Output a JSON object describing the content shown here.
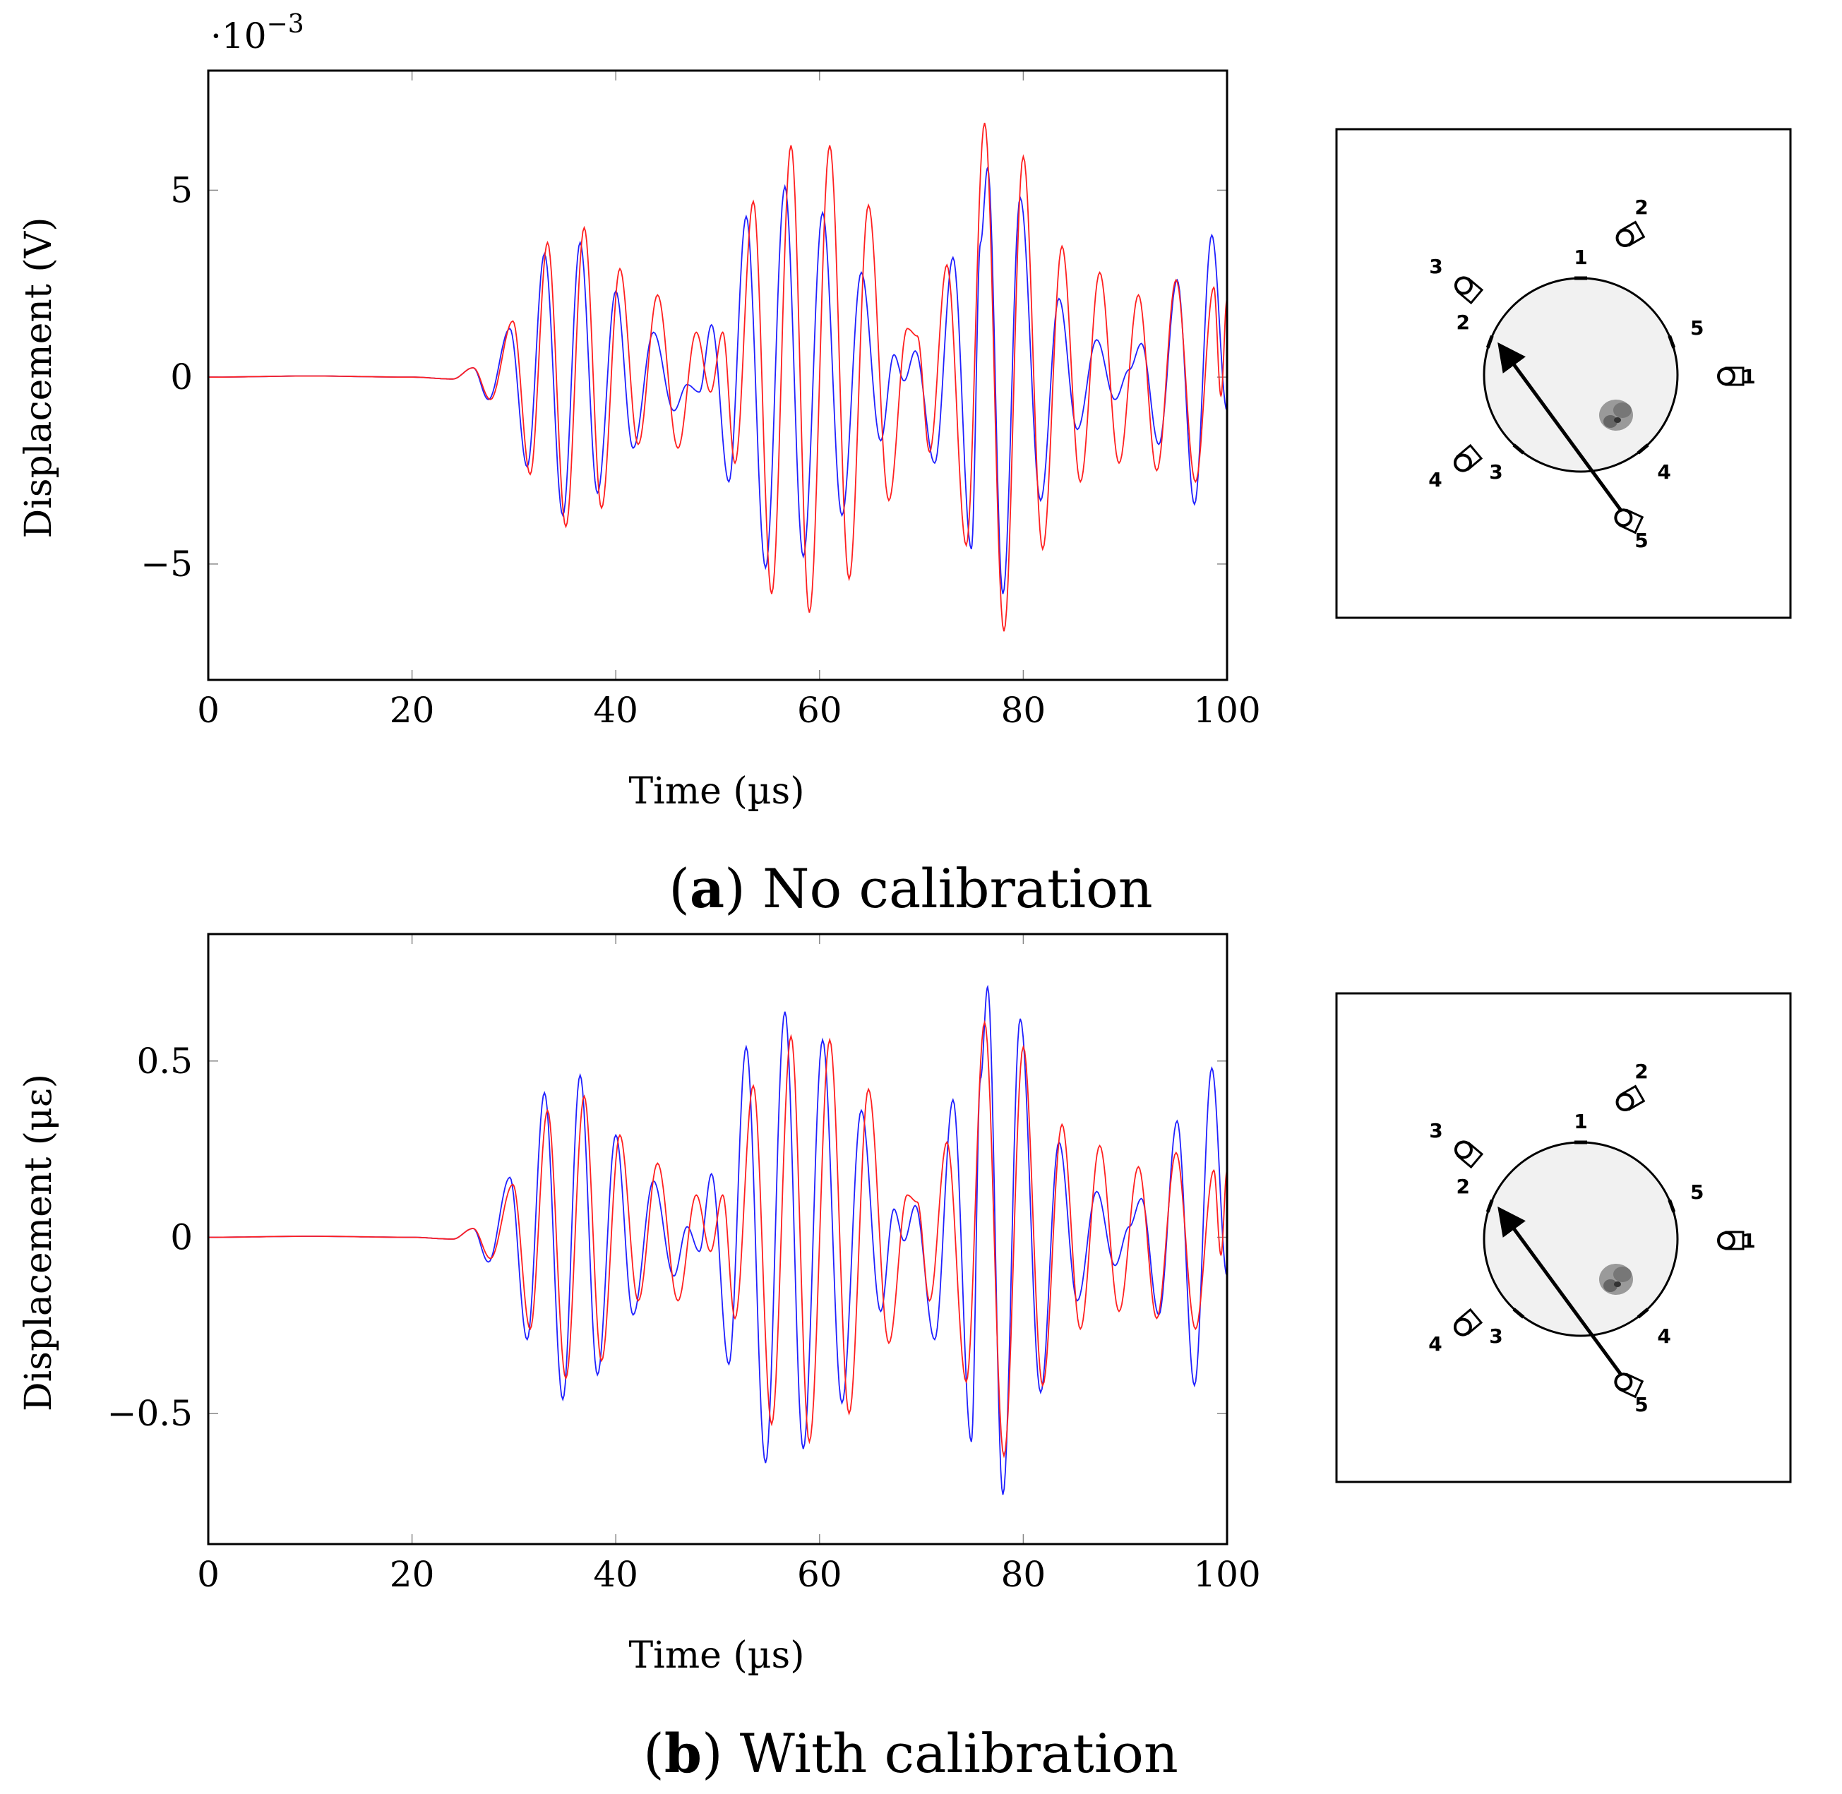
{
  "chart_data": [
    {
      "type": "line",
      "xlabel": "Time (µs)",
      "ylabel": "Displacement (V)",
      "exponent_label": "·10",
      "exponent_power": "−3",
      "xlim": [
        0,
        100
      ],
      "ylim": [
        -8.1,
        8.2
      ],
      "xticks": [
        "0",
        "20",
        "40",
        "60",
        "80",
        "100"
      ],
      "yticks": [
        {
          "v": 5,
          "t": "5"
        },
        {
          "v": 0,
          "t": "0"
        },
        {
          "v": -5,
          "t": "−5"
        }
      ],
      "caption_letter": "a",
      "caption_text": " No calibration",
      "series": [
        {
          "name": "blue",
          "color": "#2020ff",
          "points": [
            [
              0,
              0
            ],
            [
              10,
              0.03
            ],
            [
              20,
              0
            ],
            [
              24,
              -0.05
            ],
            [
              26,
              0.25
            ],
            [
              27.5,
              -0.6
            ],
            [
              29.6,
              1.3
            ],
            [
              31.3,
              -2.4
            ],
            [
              33,
              3.3
            ],
            [
              34.8,
              -3.7
            ],
            [
              36.5,
              3.6
            ],
            [
              38.2,
              -3.1
            ],
            [
              40,
              2.3
            ],
            [
              41.7,
              -1.9
            ],
            [
              43.7,
              1.2
            ],
            [
              45.7,
              -0.9
            ],
            [
              47,
              -0.2
            ],
            [
              48.2,
              -0.4
            ],
            [
              49.4,
              1.4
            ],
            [
              51.1,
              -2.8
            ],
            [
              52.8,
              4.3
            ],
            [
              54.7,
              -5.1
            ],
            [
              56.6,
              5.1
            ],
            [
              58.4,
              -4.8
            ],
            [
              60.3,
              4.4
            ],
            [
              62.2,
              -3.7
            ],
            [
              64.1,
              2.8
            ],
            [
              66,
              -1.7
            ],
            [
              67.3,
              0.6
            ],
            [
              68.3,
              -0.1
            ],
            [
              69.4,
              0.7
            ],
            [
              71.3,
              -2.3
            ],
            [
              73.1,
              3.2
            ],
            [
              74.9,
              -4.6
            ],
            [
              75.8,
              3.6
            ],
            [
              76.5,
              5.6
            ],
            [
              78,
              -5.8
            ],
            [
              79.7,
              4.8
            ],
            [
              81.7,
              -3.3
            ],
            [
              83.5,
              2.1
            ],
            [
              85.3,
              -1.4
            ],
            [
              87.2,
              1.0
            ],
            [
              89,
              -0.6
            ],
            [
              90.4,
              0.2
            ],
            [
              91.6,
              0.9
            ],
            [
              93.3,
              -1.8
            ],
            [
              95.1,
              2.6
            ],
            [
              96.8,
              -3.4
            ],
            [
              98.5,
              3.8
            ],
            [
              100,
              -0.9
            ]
          ]
        },
        {
          "name": "red",
          "color": "#ff2020",
          "points": [
            [
              0,
              0
            ],
            [
              10,
              0.03
            ],
            [
              20,
              0
            ],
            [
              24,
              -0.05
            ],
            [
              26,
              0.25
            ],
            [
              27.7,
              -0.6
            ],
            [
              29.9,
              1.5
            ],
            [
              31.6,
              -2.6
            ],
            [
              33.3,
              3.6
            ],
            [
              35.1,
              -4.0
            ],
            [
              36.9,
              4.0
            ],
            [
              38.6,
              -3.5
            ],
            [
              40.4,
              2.9
            ],
            [
              42.2,
              -1.8
            ],
            [
              44.1,
              2.2
            ],
            [
              46.1,
              -1.9
            ],
            [
              47.9,
              1.2
            ],
            [
              49.3,
              -0.4
            ],
            [
              50.5,
              1.2
            ],
            [
              51.7,
              -2.3
            ],
            [
              53.5,
              4.7
            ],
            [
              55.3,
              -5.8
            ],
            [
              57.2,
              6.2
            ],
            [
              59,
              -6.3
            ],
            [
              61,
              6.2
            ],
            [
              62.9,
              -5.4
            ],
            [
              64.8,
              4.6
            ],
            [
              66.8,
              -3.3
            ],
            [
              68.6,
              1.3
            ],
            [
              69.6,
              1.1
            ],
            [
              70.8,
              -2.0
            ],
            [
              72.5,
              3.0
            ],
            [
              74.4,
              -4.5
            ],
            [
              76.2,
              6.8
            ],
            [
              78.1,
              -6.8
            ],
            [
              80,
              5.9
            ],
            [
              81.9,
              -4.6
            ],
            [
              83.8,
              3.5
            ],
            [
              85.6,
              -2.8
            ],
            [
              87.5,
              2.8
            ],
            [
              89.4,
              -2.3
            ],
            [
              91.3,
              2.2
            ],
            [
              93.1,
              -2.5
            ],
            [
              95,
              2.6
            ],
            [
              96.9,
              -2.8
            ],
            [
              98.7,
              2.4
            ],
            [
              99.4,
              -0.5
            ],
            [
              100,
              2.1
            ]
          ]
        }
      ]
    },
    {
      "type": "line",
      "xlabel": "Time (µs)",
      "ylabel": "Displacement (με)",
      "exponent_label": "",
      "exponent_power": "",
      "xlim": [
        0,
        100
      ],
      "ylim": [
        -0.87,
        0.86
      ],
      "xticks": [
        "0",
        "20",
        "40",
        "60",
        "80",
        "100"
      ],
      "yticks": [
        {
          "v": 0.5,
          "t": "0.5"
        },
        {
          "v": 0,
          "t": "0"
        },
        {
          "v": -0.5,
          "t": "−0.5"
        }
      ],
      "caption_letter": "b",
      "caption_text": " With calibration",
      "series": [
        {
          "name": "blue",
          "color": "#2020ff",
          "points": [
            [
              0,
              0
            ],
            [
              10,
              0.003
            ],
            [
              20,
              0
            ],
            [
              24,
              -0.005
            ],
            [
              26,
              0.025
            ],
            [
              27.5,
              -0.07
            ],
            [
              29.6,
              0.17
            ],
            [
              31.3,
              -0.29
            ],
            [
              33,
              0.41
            ],
            [
              34.8,
              -0.46
            ],
            [
              36.5,
              0.46
            ],
            [
              38.2,
              -0.39
            ],
            [
              40,
              0.29
            ],
            [
              41.7,
              -0.22
            ],
            [
              43.7,
              0.16
            ],
            [
              45.7,
              -0.11
            ],
            [
              47,
              0.03
            ],
            [
              48.2,
              -0.04
            ],
            [
              49.4,
              0.18
            ],
            [
              51.1,
              -0.36
            ],
            [
              52.8,
              0.54
            ],
            [
              54.7,
              -0.64
            ],
            [
              56.6,
              0.64
            ],
            [
              58.4,
              -0.6
            ],
            [
              60.3,
              0.56
            ],
            [
              62.2,
              -0.47
            ],
            [
              64.1,
              0.36
            ],
            [
              66,
              -0.21
            ],
            [
              67.3,
              0.08
            ],
            [
              68.3,
              -0.01
            ],
            [
              69.4,
              0.09
            ],
            [
              71.3,
              -0.29
            ],
            [
              73.1,
              0.39
            ],
            [
              74.9,
              -0.58
            ],
            [
              75.8,
              0.45
            ],
            [
              76.5,
              0.71
            ],
            [
              78,
              -0.73
            ],
            [
              79.7,
              0.62
            ],
            [
              81.7,
              -0.44
            ],
            [
              83.5,
              0.27
            ],
            [
              85.3,
              -0.18
            ],
            [
              87.2,
              0.13
            ],
            [
              89,
              -0.08
            ],
            [
              90.4,
              0.03
            ],
            [
              91.6,
              0.11
            ],
            [
              93.3,
              -0.22
            ],
            [
              95.1,
              0.33
            ],
            [
              96.8,
              -0.42
            ],
            [
              98.5,
              0.48
            ],
            [
              100,
              -0.11
            ]
          ]
        },
        {
          "name": "red",
          "color": "#ff2020",
          "points": [
            [
              0,
              0
            ],
            [
              10,
              0.003
            ],
            [
              20,
              0
            ],
            [
              24,
              -0.005
            ],
            [
              26,
              0.025
            ],
            [
              27.7,
              -0.06
            ],
            [
              29.9,
              0.15
            ],
            [
              31.6,
              -0.26
            ],
            [
              33.3,
              0.36
            ],
            [
              35.1,
              -0.4
            ],
            [
              36.9,
              0.4
            ],
            [
              38.6,
              -0.35
            ],
            [
              40.4,
              0.29
            ],
            [
              42.2,
              -0.18
            ],
            [
              44.1,
              0.21
            ],
            [
              46.1,
              -0.18
            ],
            [
              47.9,
              0.12
            ],
            [
              49.3,
              -0.04
            ],
            [
              50.5,
              0.12
            ],
            [
              51.7,
              -0.23
            ],
            [
              53.5,
              0.43
            ],
            [
              55.3,
              -0.53
            ],
            [
              57.2,
              0.57
            ],
            [
              59,
              -0.58
            ],
            [
              61,
              0.56
            ],
            [
              62.9,
              -0.5
            ],
            [
              64.8,
              0.42
            ],
            [
              66.8,
              -0.3
            ],
            [
              68.6,
              0.12
            ],
            [
              69.6,
              0.1
            ],
            [
              70.8,
              -0.18
            ],
            [
              72.5,
              0.27
            ],
            [
              74.4,
              -0.41
            ],
            [
              76.2,
              0.61
            ],
            [
              78.1,
              -0.62
            ],
            [
              80,
              0.54
            ],
            [
              81.9,
              -0.42
            ],
            [
              83.8,
              0.32
            ],
            [
              85.6,
              -0.26
            ],
            [
              87.5,
              0.26
            ],
            [
              89.4,
              -0.21
            ],
            [
              91.3,
              0.2
            ],
            [
              93.1,
              -0.23
            ],
            [
              95,
              0.24
            ],
            [
              96.9,
              -0.26
            ],
            [
              98.7,
              0.19
            ],
            [
              99.4,
              -0.05
            ],
            [
              100,
              0.19
            ]
          ]
        }
      ]
    }
  ],
  "diagrams": [
    {
      "transducers": [
        {
          "id": "1",
          "label": "1"
        },
        {
          "id": "2",
          "label": "2"
        },
        {
          "id": "3",
          "label": "3"
        },
        {
          "id": "4",
          "label": "4"
        },
        {
          "id": "5",
          "label": "5"
        }
      ],
      "rim_markers": [
        "1",
        "2",
        "3",
        "4",
        "5"
      ]
    },
    {
      "transducers": [
        {
          "id": "1",
          "label": "1"
        },
        {
          "id": "2",
          "label": "2"
        },
        {
          "id": "3",
          "label": "3"
        },
        {
          "id": "4",
          "label": "4"
        },
        {
          "id": "5",
          "label": "5"
        }
      ],
      "rim_markers": [
        "1",
        "2",
        "3",
        "4",
        "5"
      ]
    }
  ]
}
